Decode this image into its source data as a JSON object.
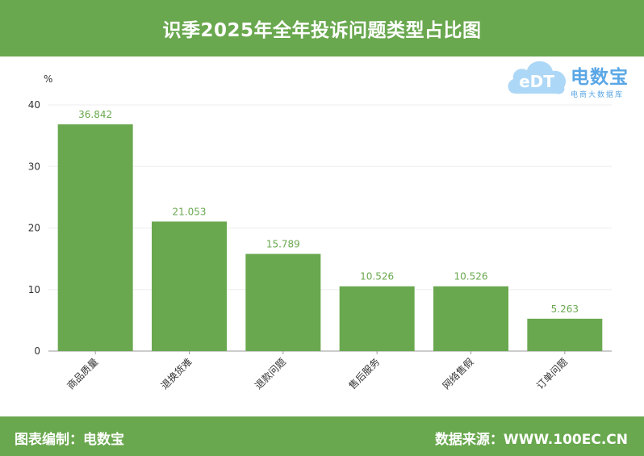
{
  "header": {
    "title": "识季2025年全年投诉问题类型占比图"
  },
  "logo": {
    "brand": "电数宝",
    "sub": "电商大数据库",
    "mark": "eDT"
  },
  "footer": {
    "left": "图表编制：电数宝",
    "right": "数据来源：WWW.100EC.CN"
  },
  "colors": {
    "bar": "#6aa84f",
    "accent": "#6aa84f",
    "logo": "#5aa7e6"
  },
  "chart_data": {
    "type": "bar",
    "title": "识季2025年全年投诉问题类型占比图",
    "ylabel": "%",
    "ylim": [
      0,
      40
    ],
    "yticks": [
      0,
      10,
      20,
      30,
      40
    ],
    "categories": [
      "商品质量",
      "退换货难",
      "退款问题",
      "售后服务",
      "网络售假",
      "订单问题"
    ],
    "values": [
      36.842,
      21.053,
      15.789,
      10.526,
      10.526,
      5.263
    ],
    "data_labels": [
      "36.842",
      "21.053",
      "15.789",
      "10.526",
      "10.526",
      "5.263"
    ],
    "grid": true,
    "legend": "none"
  }
}
